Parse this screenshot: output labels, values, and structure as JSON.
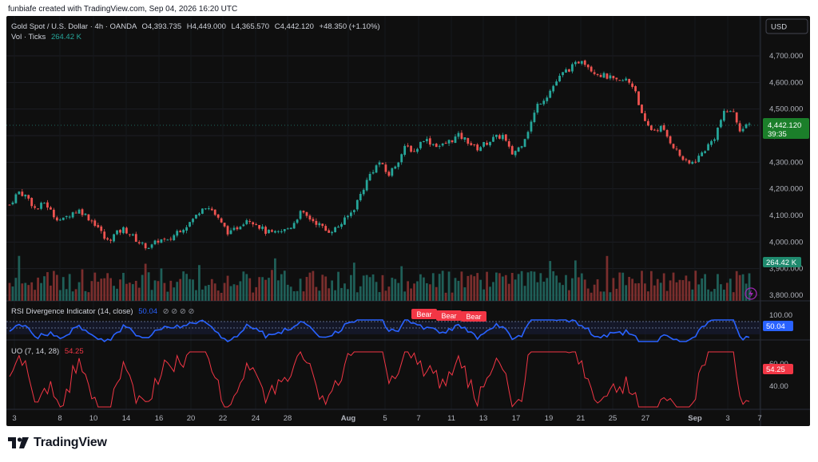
{
  "header": {
    "created_by": "funbiafe created with TradingView.com, Sep 04, 2026 16:20 UTC"
  },
  "legend": {
    "symbol": "Gold Spot / U.S. Dollar · 4h · OANDA",
    "open_label": "O",
    "open": "4,393.735",
    "high_label": "H",
    "high": "4,449.000",
    "low_label": "L",
    "low": "4,365.570",
    "close_label": "C",
    "close": "4,442.120",
    "change": "+48.350 (+1.10%)",
    "vol_label": "Vol · Ticks",
    "vol_value": "264.42 K"
  },
  "currency_button": "USD",
  "price_badge": {
    "price": "4,442.120",
    "countdown": "39:35"
  },
  "vol_badge": "264.42 K",
  "rsi": {
    "title": "RSI Divergence Indicator (14, close)",
    "value": "50.04",
    "icons": "⊘ ⊘ ⊘ ⊘",
    "bear_label": "Bear",
    "scale": [
      "100.00"
    ]
  },
  "uo": {
    "title": "UO (7, 14, 28)",
    "value": "54.25",
    "scale": [
      "60.00",
      "40.00"
    ]
  },
  "footer": {
    "brand": "TradingView"
  },
  "colors": {
    "up": "#26a69a",
    "down": "#ef5350",
    "rsi_line": "#2962ff",
    "uo_line": "#f23645",
    "background": "#0f0f0f",
    "badge": "#1b7f2a"
  },
  "chart_data": {
    "type": "candlestick",
    "y_ticks": [
      "4,700.000",
      "4,600.000",
      "4,500.000",
      "4,400.000",
      "4,300.000",
      "4,200.000",
      "4,100.000",
      "4,000.000",
      "3,900.000",
      "3,800.000"
    ],
    "x_ticks": [
      "3",
      "8",
      "10",
      "14",
      "16",
      "20",
      "22",
      "24",
      "28",
      "Aug",
      "5",
      "7",
      "11",
      "13",
      "17",
      "19",
      "21",
      "25",
      "27",
      "Sep",
      "3",
      "7"
    ],
    "ylim": [
      3800,
      4700
    ],
    "price_path": [
      4140,
      4190,
      4170,
      4120,
      4150,
      4100,
      4080,
      4110,
      4120,
      4090,
      4060,
      4000,
      4030,
      4050,
      4020,
      3990,
      3980,
      4010,
      4000,
      4040,
      4060,
      4090,
      4140,
      4120,
      4070,
      4030,
      4060,
      4090,
      4070,
      4040,
      4030,
      4040,
      4060,
      4110,
      4090,
      4070,
      4040,
      4050,
      4080,
      4120,
      4190,
      4260,
      4300,
      4250,
      4300,
      4360,
      4340,
      4390,
      4370,
      4360,
      4380,
      4400,
      4380,
      4350,
      4370,
      4390,
      4400,
      4330,
      4360,
      4430,
      4520,
      4550,
      4600,
      4640,
      4660,
      4690,
      4650,
      4630,
      4620,
      4600,
      4610,
      4580,
      4450,
      4420,
      4430,
      4380,
      4330,
      4290,
      4310,
      4350,
      4390,
      4480,
      4500,
      4420,
      4440
    ],
    "rsi_levels": [
      70,
      50
    ],
    "uo_range": [
      20,
      80
    ]
  }
}
